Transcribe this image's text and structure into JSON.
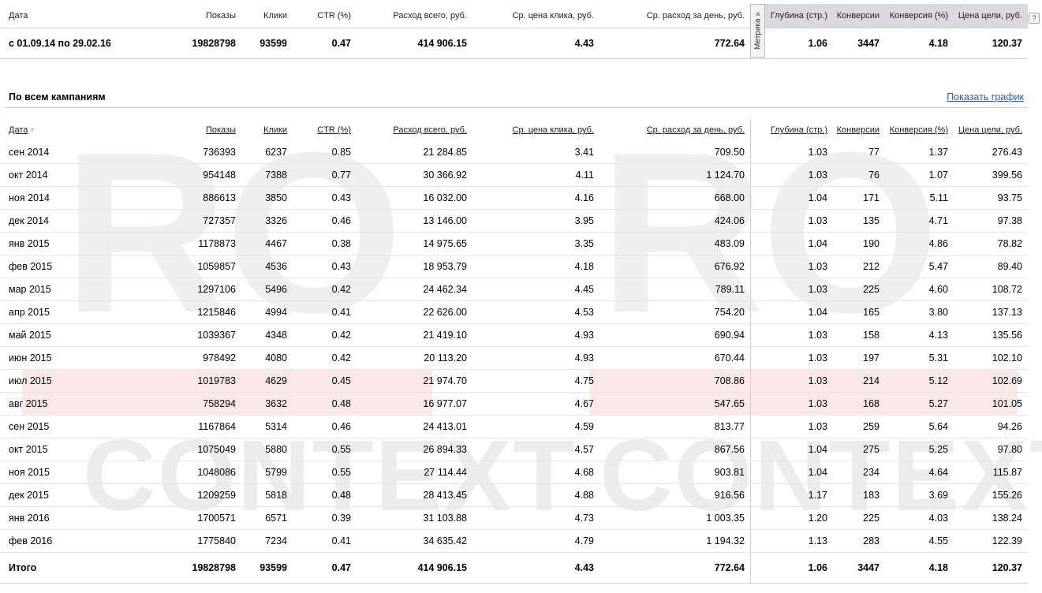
{
  "columns": [
    "Дата",
    "Показы",
    "Клики",
    "CTR (%)",
    "Расход всего, руб.",
    "Ср. цена клика, руб.",
    "Ср. расход за день, руб.",
    "Глубина (стр.)",
    "Конверсии",
    "Конверсия (%)",
    "Цена цели, руб."
  ],
  "summary": {
    "date": "с 01.09.14 по 29.02.16",
    "values": [
      "19828798",
      "93599",
      "0.47",
      "414 906.15",
      "4.43",
      "772.64",
      "1.06",
      "3447",
      "4.18",
      "120.37"
    ]
  },
  "metrika_label": "Метрика »",
  "help_label": "?",
  "section": {
    "title": "По всем кампаниям",
    "show_chart": "Показать график",
    "sort_arrow": "↑"
  },
  "rows": [
    [
      "сен 2014",
      "736393",
      "6237",
      "0.85",
      "21 284.85",
      "3.41",
      "709.50",
      "1.03",
      "77",
      "1.37",
      "276.43"
    ],
    [
      "окт 2014",
      "954148",
      "7388",
      "0.77",
      "30 366.92",
      "4.11",
      "1 124.70",
      "1.03",
      "76",
      "1.07",
      "399.56"
    ],
    [
      "ноя 2014",
      "886613",
      "3850",
      "0.43",
      "16 032.00",
      "4.16",
      "668.00",
      "1.04",
      "171",
      "5.11",
      "93.75"
    ],
    [
      "дек 2014",
      "727357",
      "3326",
      "0.46",
      "13 146.00",
      "3.95",
      "424.06",
      "1.03",
      "135",
      "4.71",
      "97.38"
    ],
    [
      "янв 2015",
      "1178873",
      "4467",
      "0.38",
      "14 975.65",
      "3.35",
      "483.09",
      "1.04",
      "190",
      "4.86",
      "78.82"
    ],
    [
      "фев 2015",
      "1059857",
      "4536",
      "0.43",
      "18 953.79",
      "4.18",
      "676.92",
      "1.03",
      "212",
      "5.47",
      "89.40"
    ],
    [
      "мар 2015",
      "1297106",
      "5496",
      "0.42",
      "24 462.34",
      "4.45",
      "789.11",
      "1.03",
      "225",
      "4.60",
      "108.72"
    ],
    [
      "апр 2015",
      "1215846",
      "4994",
      "0.41",
      "22 626.00",
      "4.53",
      "754.20",
      "1.04",
      "165",
      "3.80",
      "137.13"
    ],
    [
      "май 2015",
      "1039367",
      "4348",
      "0.42",
      "21 419.10",
      "4.93",
      "690.94",
      "1.03",
      "158",
      "4.13",
      "135.56"
    ],
    [
      "июн 2015",
      "978492",
      "4080",
      "0.42",
      "20 113.20",
      "4.93",
      "670.44",
      "1.03",
      "197",
      "5.31",
      "102.10"
    ],
    [
      "июл 2015",
      "1019783",
      "4629",
      "0.45",
      "21 974.70",
      "4.75",
      "708.86",
      "1.03",
      "214",
      "5.12",
      "102.69"
    ],
    [
      "авг 2015",
      "758294",
      "3632",
      "0.48",
      "16 977.07",
      "4.67",
      "547.65",
      "1.03",
      "168",
      "5.27",
      "101.05"
    ],
    [
      "сен 2015",
      "1167864",
      "5314",
      "0.46",
      "24 413.01",
      "4.59",
      "813.77",
      "1.03",
      "259",
      "5.64",
      "94.26"
    ],
    [
      "окт 2015",
      "1075049",
      "5880",
      "0.55",
      "26 894.33",
      "4.57",
      "867.56",
      "1.04",
      "275",
      "5.25",
      "97.80"
    ],
    [
      "ноя 2015",
      "1048086",
      "5799",
      "0.55",
      "27 114.44",
      "4.68",
      "903.81",
      "1.04",
      "234",
      "4.64",
      "115.87"
    ],
    [
      "дек 2015",
      "1209259",
      "5818",
      "0.48",
      "28 413.45",
      "4.88",
      "916.56",
      "1.17",
      "183",
      "3.69",
      "155.26"
    ],
    [
      "янв 2016",
      "1700571",
      "6571",
      "0.39",
      "31 103.88",
      "4.73",
      "1 003.35",
      "1.20",
      "225",
      "4.03",
      "138.24"
    ],
    [
      "фев 2016",
      "1775840",
      "7234",
      "0.41",
      "34 635.42",
      "4.79",
      "1 194.32",
      "1.13",
      "283",
      "4.55",
      "122.39"
    ]
  ],
  "total": {
    "label": "Итого",
    "values": [
      "19828798",
      "93599",
      "0.47",
      "414 906.15",
      "4.43",
      "772.64",
      "1.06",
      "3447",
      "4.18",
      "120.37"
    ]
  },
  "watermark": {
    "ro_left": "RO",
    "ro_right": "RO",
    "context_left": "CONTEXT",
    "context_right": "CONTEXT"
  },
  "highlight_color": "#fde8e8"
}
